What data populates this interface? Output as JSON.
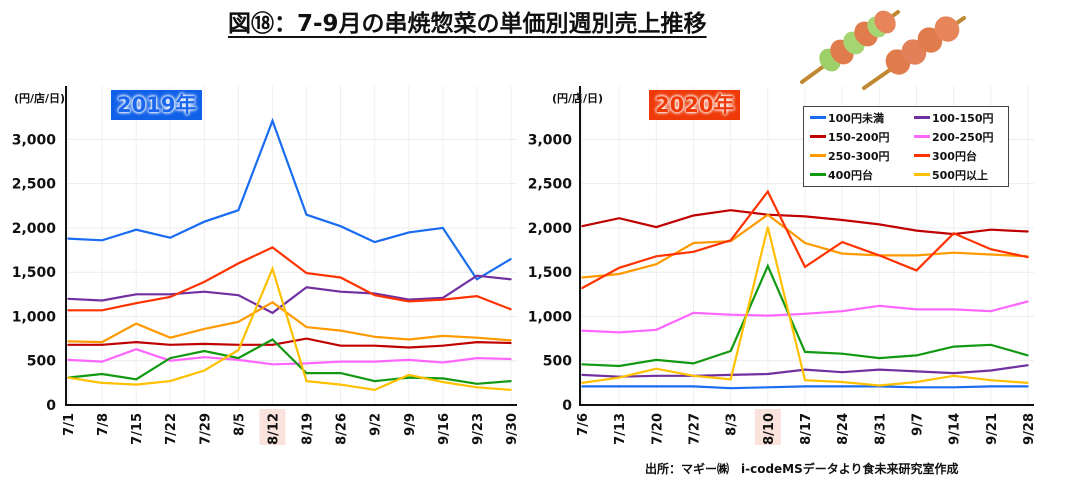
{
  "title": "図⑱：7-9月の串焼惣菜の単価別週別売上推移",
  "source": "出所：マギー㈱　i-codeMSデータより食未来研究室作成",
  "decoration_icon": "yakitori-skewers-icon",
  "legend": [
    {
      "name": "100円未満",
      "color": "#1a6cf0"
    },
    {
      "name": "100-150円",
      "color": "#7030a0"
    },
    {
      "name": "150-200円",
      "color": "#c00000"
    },
    {
      "name": "200-250円",
      "color": "#ff66ff"
    },
    {
      "name": "250-300円",
      "color": "#ff9900"
    },
    {
      "name": "300円台",
      "color": "#ff3300"
    },
    {
      "name": "400円台",
      "color": "#119911"
    },
    {
      "name": "500円以上",
      "color": "#ffc000"
    }
  ],
  "chart_data": [
    {
      "type": "line",
      "title": "2019年",
      "title_color": "#1060e8",
      "ylabel": "(円/店/日)",
      "xlabel": "",
      "ylim": [
        0,
        3400
      ],
      "yticks": [
        0,
        500,
        1000,
        1500,
        2000,
        2500,
        3000
      ],
      "ytick_labels": [
        "0",
        "500",
        "1,000",
        "1,500",
        "2,000",
        "2,500",
        "3,000"
      ],
      "grid": true,
      "highlighted_category": "8/12",
      "categories": [
        "7/1",
        "7/8",
        "7/15",
        "7/22",
        "7/29",
        "8/5",
        "8/12",
        "8/19",
        "8/26",
        "9/2",
        "9/9",
        "9/16",
        "9/23",
        "9/30"
      ],
      "series": [
        {
          "name": "100円未満",
          "values": [
            1880,
            1860,
            1980,
            1890,
            2070,
            2200,
            3210,
            2150,
            2020,
            1840,
            1950,
            2000,
            1420,
            1650
          ]
        },
        {
          "name": "100-150円",
          "values": [
            1200,
            1180,
            1250,
            1250,
            1280,
            1240,
            1040,
            1330,
            1280,
            1260,
            1190,
            1210,
            1460,
            1420
          ]
        },
        {
          "name": "150-200円",
          "values": [
            680,
            680,
            710,
            680,
            690,
            680,
            680,
            750,
            670,
            670,
            650,
            670,
            710,
            700
          ]
        },
        {
          "name": "200-250円",
          "values": [
            510,
            490,
            630,
            500,
            540,
            510,
            460,
            470,
            490,
            490,
            510,
            480,
            530,
            520
          ]
        },
        {
          "name": "250-300円",
          "values": [
            720,
            710,
            920,
            760,
            860,
            940,
            1160,
            880,
            840,
            770,
            740,
            780,
            760,
            730
          ]
        },
        {
          "name": "300円台",
          "values": [
            1070,
            1070,
            1150,
            1220,
            1390,
            1600,
            1780,
            1490,
            1440,
            1240,
            1170,
            1190,
            1230,
            1080
          ]
        },
        {
          "name": "400円台",
          "values": [
            310,
            350,
            290,
            530,
            610,
            530,
            740,
            360,
            360,
            270,
            310,
            300,
            240,
            270
          ]
        },
        {
          "name": "500円以上",
          "values": [
            310,
            250,
            230,
            270,
            390,
            620,
            1540,
            270,
            230,
            170,
            340,
            260,
            200,
            170
          ]
        }
      ]
    },
    {
      "type": "line",
      "title": "2020年",
      "title_color": "#ee3a08",
      "ylabel": "(円/店/日)",
      "xlabel": "",
      "ylim": [
        0,
        3400
      ],
      "yticks": [
        0,
        500,
        1000,
        1500,
        2000,
        2500,
        3000
      ],
      "ytick_labels": [
        "0",
        "500",
        "1,000",
        "1,500",
        "2,000",
        "2,500",
        "3,000"
      ],
      "grid": true,
      "legend_position": "top-right",
      "highlighted_category": "8/10",
      "categories": [
        "7/6",
        "7/13",
        "7/20",
        "7/27",
        "8/3",
        "8/10",
        "8/17",
        "8/24",
        "8/31",
        "9/7",
        "9/14",
        "9/21",
        "9/28"
      ],
      "series": [
        {
          "name": "100円未満",
          "values": [
            210,
            210,
            210,
            210,
            190,
            200,
            210,
            210,
            210,
            200,
            200,
            210,
            210
          ]
        },
        {
          "name": "100-150円",
          "values": [
            340,
            320,
            330,
            330,
            340,
            350,
            400,
            370,
            400,
            380,
            360,
            390,
            450
          ]
        },
        {
          "name": "150-200円",
          "values": [
            2020,
            2110,
            2010,
            2140,
            2200,
            2150,
            2130,
            2090,
            2040,
            1970,
            1930,
            1980,
            1960
          ]
        },
        {
          "name": "200-250円",
          "values": [
            840,
            820,
            850,
            1040,
            1020,
            1010,
            1030,
            1060,
            1120,
            1080,
            1080,
            1060,
            1170
          ]
        },
        {
          "name": "250-300円",
          "values": [
            1440,
            1480,
            1590,
            1830,
            1850,
            2150,
            1830,
            1710,
            1690,
            1690,
            1720,
            1700,
            1680
          ]
        },
        {
          "name": "300円台",
          "values": [
            1320,
            1550,
            1680,
            1730,
            1860,
            2410,
            1560,
            1840,
            1690,
            1520,
            1940,
            1760,
            1670
          ]
        },
        {
          "name": "400円台",
          "values": [
            460,
            440,
            510,
            470,
            610,
            1570,
            600,
            580,
            530,
            560,
            660,
            680,
            560
          ]
        },
        {
          "name": "500円以上",
          "values": [
            250,
            310,
            410,
            330,
            290,
            2010,
            280,
            260,
            220,
            260,
            330,
            280,
            250
          ]
        }
      ]
    }
  ]
}
